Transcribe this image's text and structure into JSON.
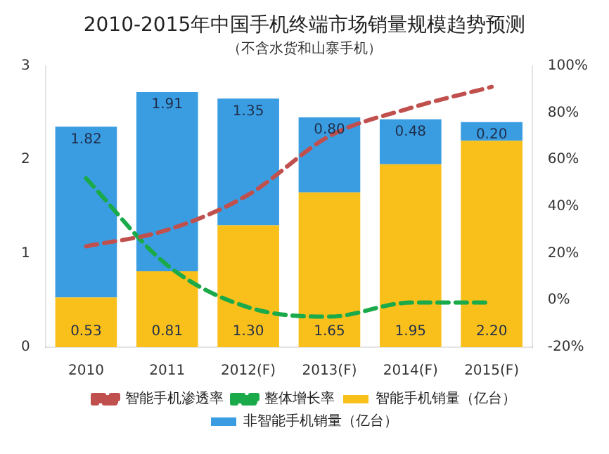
{
  "chart_data": {
    "type": "bar",
    "title": "2010-2015年中国手机终端市场销量规模趋势预测",
    "subtitle": "（不含水货和山寨手机）",
    "categories": [
      "2010",
      "2011",
      "2012(F)",
      "2013(F)",
      "2014(F)",
      "2015(F)"
    ],
    "stacked": true,
    "series": [
      {
        "name": "智能手机销量（亿台）",
        "color": "#f9c01c",
        "values": [
          0.53,
          0.81,
          1.3,
          1.65,
          1.95,
          2.2
        ],
        "value_labels": [
          "0.53",
          "0.81",
          "1.30",
          "1.65",
          "1.95",
          "2.20"
        ]
      },
      {
        "name": "非智能手机销量（亿台）",
        "color": "#3a9de2",
        "values": [
          1.82,
          1.91,
          1.35,
          0.8,
          0.48,
          0.2
        ],
        "value_labels": [
          "1.82",
          "1.91",
          "1.35",
          "0.80",
          "0.48",
          "0.20"
        ]
      },
      {
        "name": "智能手机渗透率",
        "type": "line",
        "axis": "y2",
        "color": "#c0504d",
        "values": [
          23,
          30,
          45,
          70,
          82,
          91
        ]
      },
      {
        "name": "整体增长率",
        "type": "line",
        "axis": "y2",
        "color": "#1aaa4a",
        "values": [
          52,
          15,
          -3,
          -7,
          -1,
          -1
        ]
      }
    ],
    "ylim": [
      0,
      3
    ],
    "yticks": [
      0,
      1,
      2,
      3
    ],
    "y2lim": [
      -20,
      100
    ],
    "y2ticks": [
      {
        "value": -20,
        "label": "-20%"
      },
      {
        "value": 0,
        "label": "0%"
      },
      {
        "value": 20,
        "label": "20%"
      },
      {
        "value": 40,
        "label": "40%"
      },
      {
        "value": 60,
        "label": "60%"
      },
      {
        "value": 80,
        "label": "80%"
      },
      {
        "value": 100,
        "label": "100%"
      }
    ],
    "line_style": "dashed",
    "marker": "none",
    "grid": false,
    "legend": "bottom"
  }
}
